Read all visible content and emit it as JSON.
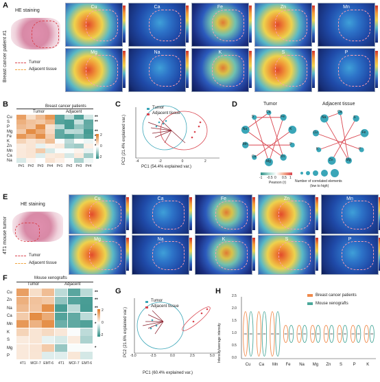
{
  "panels": {
    "A": "A",
    "B": "B",
    "C": "C",
    "D": "D",
    "E": "E",
    "F": "F",
    "G": "G",
    "H": "H"
  },
  "panel_a": {
    "side_label": "Breast cancer patient #1",
    "he_label": "HE staining",
    "elements_top": [
      "Cu",
      "Ca",
      "Fe",
      "Zn",
      "Mn"
    ],
    "elements_bottom": [
      "Mg",
      "Na",
      "K",
      "S",
      "P"
    ],
    "legend_tumor": "Tumor",
    "legend_adjacent": "Adjacent tissue"
  },
  "panel_b": {
    "title": "Breast cancer patients",
    "group_tumor": "Tumor",
    "group_adjacent": "Adjacent",
    "rows": [
      "Cu",
      "S",
      "P",
      "Mg",
      "Fe",
      "K",
      "Zn",
      "Mn",
      "Ca",
      "Na"
    ],
    "cols": [
      "P#1",
      "P#2",
      "P#3",
      "P#4",
      "P#1",
      "P#2",
      "P#3",
      "P#4"
    ],
    "sig": [
      "**",
      "**",
      "",
      "**",
      "**",
      "**",
      "*",
      "",
      "",
      ""
    ],
    "scale_max": "2",
    "scale_mid": "0",
    "scale_min": "-2"
  },
  "panel_c": {
    "legend_tumor": "Tumor",
    "legend_adjacent": "Adjacent tissue",
    "xlabel": "PC1 (54.4% explained var.)",
    "ylabel": "PC2 (21.4% explained var.)",
    "xticks": [
      "-4",
      "-2",
      "0",
      "2"
    ]
  },
  "panel_d": {
    "title_tumor": "Tumor",
    "title_adjacent": "Adjacent tissue",
    "nodes_tumor": [
      "Cu",
      "Fe",
      "K",
      "P",
      "Zn",
      "Mg",
      "Ca",
      "Mn",
      "Na",
      "S"
    ],
    "nodes_adjacent": [
      "Ca",
      "S",
      "Fe",
      "P",
      "Mg",
      "Zn",
      "K",
      "Cu",
      "Na"
    ],
    "pearson_label": "Pearson (r)",
    "pearson_ticks": [
      "-1",
      "-0.5",
      "0",
      "0.5",
      "1"
    ],
    "size_label": "Number of correlated elements",
    "size_sub": "(low to high)"
  },
  "panel_e": {
    "side_label": "4T1 mouse tumor",
    "he_label": "HE staining",
    "elements_top": [
      "Cu",
      "Ca",
      "Fe",
      "Zn",
      "Mn"
    ],
    "elements_bottom": [
      "Mg",
      "Na",
      "K",
      "S",
      "P"
    ],
    "legend_tumor": "Tumor",
    "legend_adjacent": "Adjacent tissue"
  },
  "panel_f": {
    "title": "Mouse xenografts",
    "group_tumor": "Tumor",
    "group_adjacent": "Adjacent",
    "rows": [
      "Cu",
      "Zn",
      "Na",
      "Ca",
      "Mn",
      "K",
      "S",
      "Mg",
      "P"
    ],
    "cols": [
      "4T1",
      "MCF-7",
      "EMT-6",
      "4T1",
      "MCF-7",
      "EMT-6"
    ],
    "sig": [
      "**",
      "**",
      "**",
      "*",
      "*",
      "",
      "",
      "*",
      ""
    ],
    "scale_max": "2",
    "scale_mid": "0",
    "scale_min": "-2"
  },
  "panel_g": {
    "legend_tumor": "Tumor",
    "legend_adjacent": "Adjacent tissue",
    "xlabel": "PC1 (60.4% explained var.)",
    "ylabel": "PC2 (21.6% explained var.)",
    "xticks": [
      "-5.0",
      "-2.5",
      "0.0",
      "2.5",
      "5.0"
    ]
  },
  "chart_data": {
    "type": "violin",
    "ylabel": "Intensity/average intensity",
    "categories": [
      "Cu",
      "Ca",
      "Mn",
      "Fe",
      "Na",
      "Mg",
      "Zn",
      "S",
      "P",
      "K"
    ],
    "series": [
      {
        "name": "Breast cancer patients",
        "color": "#f08a4b"
      },
      {
        "name": "Mouse xenografts",
        "color": "#4aa89a"
      }
    ],
    "ylim": [
      0.0,
      2.5
    ],
    "yticks": [
      "0.0",
      "0.5",
      "1.0",
      "1.5",
      "2.0",
      "2.5"
    ]
  },
  "colors": {
    "tumor": "#d9434d",
    "adjacent": "#f0a23a",
    "heat_high": "#e07a26",
    "heat_low": "#2f8f86"
  }
}
